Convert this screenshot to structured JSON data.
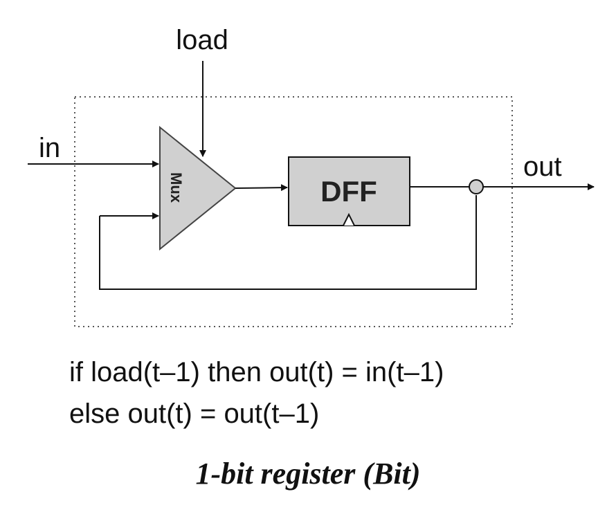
{
  "signals": {
    "input": "in",
    "load": "load",
    "output": "out"
  },
  "components": {
    "mux": "Mux",
    "dff": "DFF"
  },
  "equations": {
    "line1": "if load(t–1) then out(t) = in(t–1)",
    "line2": "else out(t) = out(t–1)"
  },
  "caption": "1-bit register (Bit)",
  "colors": {
    "component_fill": "#d0d0d0",
    "stroke": "#111111",
    "boundary": "#555555"
  }
}
